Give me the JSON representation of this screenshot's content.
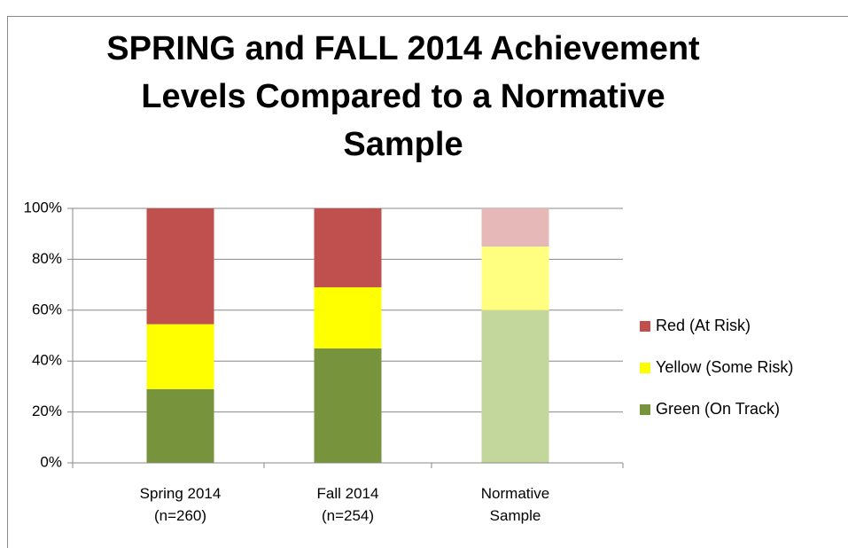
{
  "chart_data": {
    "type": "stacked_bar",
    "title": "SPRING and FALL 2014 Achievement Levels Compared to a Normative Sample",
    "categories": [
      "Spring 2014 (n=260)",
      "Fall 2014 (n=254)",
      "Normative Sample"
    ],
    "series": [
      {
        "name": "Green (On Track)",
        "color": "#77933c",
        "point_colors": [
          "#77933c",
          "#77933c",
          "#c3d69b"
        ],
        "values": [
          29,
          45,
          60
        ]
      },
      {
        "name": "Yellow (Some Risk)",
        "color": "#ffff00",
        "point_colors": [
          "#ffff00",
          "#ffff00",
          "#ffff80"
        ],
        "values": [
          25.5,
          24,
          25
        ]
      },
      {
        "name": "Red (At Risk)",
        "color": "#c0504d",
        "point_colors": [
          "#c0504d",
          "#c0504d",
          "#e6b9b8"
        ],
        "values": [
          45.5,
          31,
          15
        ]
      }
    ],
    "ylim": [
      0,
      100
    ],
    "yticks": [
      {
        "value": 0,
        "label": "0%"
      },
      {
        "value": 20,
        "label": "20%"
      },
      {
        "value": 40,
        "label": "40%"
      },
      {
        "value": 60,
        "label": "60%"
      },
      {
        "value": 80,
        "label": "80%"
      },
      {
        "value": 100,
        "label": "100%"
      }
    ],
    "grid": true,
    "legend": "right"
  }
}
